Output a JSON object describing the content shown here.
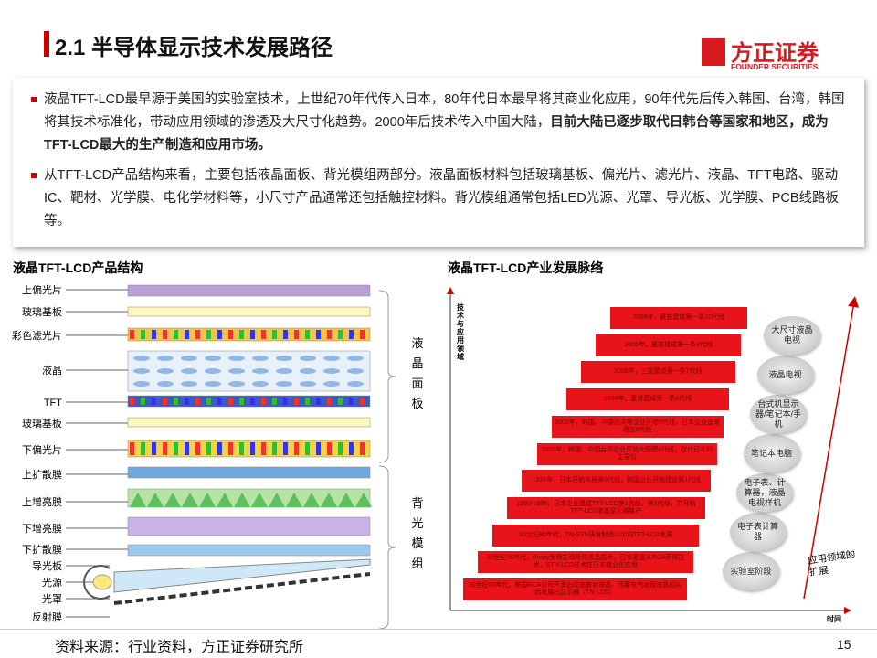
{
  "header": {
    "title": "2.1 半导体显示技术发展路径",
    "logo_name": "方正证券",
    "logo_sub": "FOUNDER SECURITIES"
  },
  "intro": {
    "bullets": [
      {
        "segments": [
          {
            "text": "液晶TFT-LCD最早源于美国的实验室技术，上世纪70年代传入日本，80年代日本最早将其商业化应用，90年代先后传入韩国、台湾，韩国将其技术标准化，带动应用领域的渗透及大尺寸化趋势。2000年后技术传入中国大陆，",
            "bold": false
          },
          {
            "text": "目前大陆已逐步取代日韩台等国家和地区，成为TFT-LCD最大的生产制造和应用市场。",
            "bold": true
          }
        ]
      },
      {
        "segments": [
          {
            "text": "从TFT-LCD产品结构来看，主要包括液晶面板、背光模组两部分。液晶面板材料包括玻璃基板、偏光片、滤光片、液晶、TFT电路、驱动IC、靶材、光学膜、电化学材料等，小尺寸产品通常还包括触控材料。背光模组通常包括LED光源、光罩、导光板、光学膜、PCB线路板等。",
            "bold": false
          }
        ]
      }
    ]
  },
  "left_figure": {
    "title": "液晶TFT-LCD产品结构",
    "layers": [
      "上偏光片",
      "玻璃基板",
      "彩色滤光片",
      "液晶",
      "TFT",
      "玻璃基板",
      "下偏光片",
      "上扩散膜",
      "上增亮膜",
      "下增亮膜",
      "下扩散膜",
      "导光板",
      "光源",
      "光罩",
      "反射膜"
    ],
    "groups": [
      "液晶面板",
      "背光模组"
    ]
  },
  "right_figure": {
    "title": "液晶TFT-LCD产业发展脉络",
    "y_axis_label": "技术与应用领域",
    "x_axis_label": "时间",
    "milestones": [
      "20世纪60年代，美国RCA公司开发出动态散射液晶，西蒙电气发现液晶相从而发展出显示器（TN-LCD）",
      "20世纪70年代，Brody发明主动矩阵液晶技术，日本夏普从RCA获得技术，STN-LCD技术在日本商业化应用",
      "20世纪80年代，TN-STN研发制造LCD向TFT-LCD发展",
      "1990-1995，日本企业建成TFT-LCD第1代线、第2代线，并开始TFT-LCD液晶显示器量产",
      "1996年，日本开始布局第3代线，韩国企业开始建设第1代线",
      "2000年，韩国、中国台湾企业开始大规模4代线，取代日本的主导位",
      "2002年，韩国、中国台湾等企业开始5代线，日本企业逐渐退出5代线",
      "2004年，夏普建成第一条6代线",
      "2005年，三星建成第一条7代线",
      "2006年，夏普建成第一条8代线",
      "2009年，夏普建成第一条10代线"
    ],
    "applications": [
      "实验室阶段",
      "电子表计算器",
      "电子表、计算器，液晶电视样机",
      "笔记本电脑",
      "台式机显示器/笔记本/手机",
      "液晶电视",
      "大尺寸液晶电视"
    ],
    "annotation": "应用领域的扩展"
  },
  "footer": {
    "source": "资料来源：行业资料，方正证券研究所",
    "page": "15"
  }
}
